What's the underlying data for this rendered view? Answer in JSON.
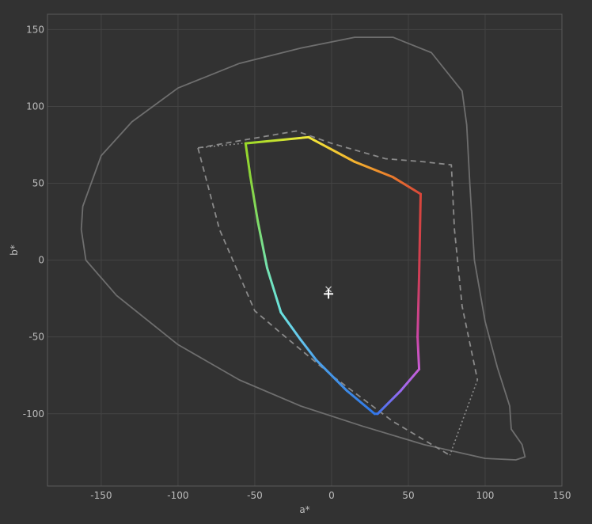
{
  "chart_data": {
    "type": "line",
    "title": "",
    "xlabel": "a*",
    "ylabel": "b*",
    "xlim": [
      -185,
      150
    ],
    "ylim": [
      -147,
      160
    ],
    "xticks": [
      -150,
      -100,
      -50,
      0,
      50,
      100,
      150
    ],
    "yticks": [
      -100,
      -50,
      0,
      50,
      100,
      150
    ],
    "grid": true,
    "legend": "none",
    "colors": {
      "background": "#323232",
      "grid": "#444444",
      "frame": "#5a5a5a",
      "tick_text": "#bdbdbd",
      "outline": "#6e6e6e",
      "marker": "#ffffff"
    },
    "series": [
      {
        "style": "solid",
        "color": "#6e6e6e",
        "points": [
          [
            -163,
            20
          ],
          [
            -162,
            35
          ],
          [
            -150,
            68
          ],
          [
            -130,
            90
          ],
          [
            -100,
            112
          ],
          [
            -60,
            128
          ],
          [
            -20,
            138
          ],
          [
            15,
            145
          ],
          [
            40,
            145
          ],
          [
            65,
            135
          ],
          [
            85,
            110
          ],
          [
            88,
            88
          ],
          [
            90,
            50
          ],
          [
            93,
            0
          ],
          [
            100,
            -40
          ],
          [
            108,
            -70
          ],
          [
            116,
            -95
          ],
          [
            117,
            -110
          ],
          [
            124,
            -120
          ],
          [
            126,
            -128
          ],
          [
            120,
            -130
          ],
          [
            100,
            -129
          ],
          [
            60,
            -120
          ],
          [
            20,
            -108
          ],
          [
            -20,
            -95
          ],
          [
            -60,
            -78
          ],
          [
            -100,
            -55
          ],
          [
            -140,
            -23
          ],
          [
            -160,
            0
          ],
          [
            -163,
            20
          ]
        ]
      },
      {
        "style": "dashed",
        "color": "#8a8a8a",
        "points": [
          [
            -87,
            73
          ],
          [
            -23,
            84
          ],
          [
            0,
            76
          ],
          [
            35,
            66
          ],
          [
            60,
            64
          ],
          [
            78,
            62
          ],
          [
            80,
            20
          ],
          [
            85,
            -30
          ],
          [
            95,
            -78
          ]
        ]
      },
      {
        "style": "dashed",
        "color": "#8a8a8a",
        "points": [
          [
            -87,
            73
          ],
          [
            -73,
            20
          ],
          [
            -60,
            -10
          ],
          [
            -50,
            -33
          ],
          [
            -30,
            -50
          ],
          [
            0,
            -75
          ],
          [
            40,
            -105
          ],
          [
            77,
            -127
          ]
        ]
      },
      {
        "style": "dotted",
        "color": "#8a8a8a",
        "points": [
          [
            -87,
            73
          ],
          [
            -58,
            76
          ]
        ]
      },
      {
        "style": "dotted",
        "color": "#8a8a8a",
        "points": [
          [
            95,
            -78
          ],
          [
            85,
            -105
          ],
          [
            77,
            -127
          ]
        ]
      },
      {
        "style": "gradient",
        "points": [
          [
            -56,
            76
          ],
          [
            -15,
            80
          ],
          [
            15,
            64
          ],
          [
            40,
            54
          ],
          [
            58,
            43
          ],
          [
            57,
            -10
          ],
          [
            56,
            -50
          ],
          [
            57,
            -71
          ],
          [
            45,
            -85
          ],
          [
            30,
            -100
          ],
          [
            28,
            -100
          ],
          [
            10,
            -85
          ],
          [
            -10,
            -65
          ],
          [
            -20,
            -52
          ],
          [
            -33,
            -34
          ],
          [
            -42,
            -5
          ],
          [
            -48,
            25
          ],
          [
            -53,
            55
          ],
          [
            -56,
            76
          ]
        ],
        "colors": [
          "#9ad928",
          "#f2e93a",
          "#f4b32f",
          "#e9792c",
          "#d9463a",
          "#cf3e56",
          "#cd46a6",
          "#c85ed6",
          "#9a6af0",
          "#3d75ee",
          "#3078e8",
          "#3d8ae6",
          "#4ca2ea",
          "#66c6ee",
          "#6ae3df",
          "#75e3b0",
          "#7fdc68",
          "#8bd53a",
          "#9ad928"
        ]
      }
    ],
    "markers": [
      {
        "shape": "x",
        "x": -2,
        "y": -19,
        "color": "#bdbdbd"
      },
      {
        "shape": "+",
        "x": -2,
        "y": -22,
        "color": "#ffffff"
      }
    ]
  }
}
